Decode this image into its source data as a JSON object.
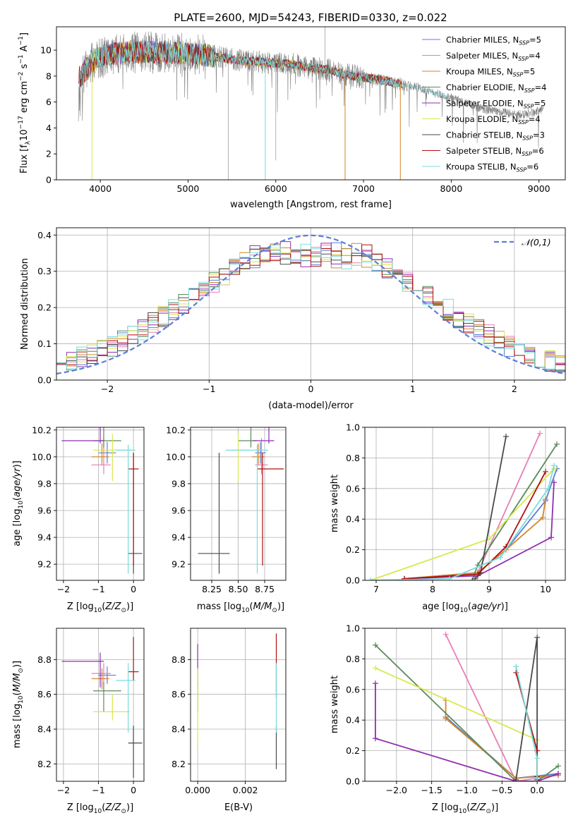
{
  "figure_title": "PLATE=2600, MJD=54243, FIBERID=0330, z=0.022",
  "colors": {
    "Chabrier MILES": "#5b7fd6",
    "Salpeter MILES": "#e57fb5",
    "Kroupa MILES": "#d4862a",
    "Chabrier ELODIE": "#5a8a5a",
    "Salpeter ELODIE": "#8e2fb0",
    "Kroupa ELODIE": "#d8e84f",
    "Chabrier STELIB": "#4a4a4a",
    "Salpeter STELIB": "#b01010",
    "Kroupa STELIB": "#79dcdc",
    "data": "#808080",
    "gaussian": "#5b7fd6"
  },
  "chart_data": [
    {
      "type": "line",
      "id": "spectrum",
      "xlabel": "wavelength [Angstrom, rest frame]",
      "ylabel": "Flux [f_λ10^-17 erg cm^-2 s^-1 A^-1]",
      "xlim": [
        3500,
        9300
      ],
      "ylim": [
        0,
        11.8
      ],
      "xticks": [
        4000,
        5000,
        6000,
        7000,
        8000,
        9000
      ],
      "yticks": [
        0,
        2,
        4,
        6,
        8,
        10
      ],
      "legend_position": "upper-right",
      "legend": [
        {
          "name": "Chabrier MILES, N_SSP=5"
        },
        {
          "name": "Salpeter MILES, N_SSP=4"
        },
        {
          "name": "Kroupa MILES, N_SSP=5"
        },
        {
          "name": "Chabrier ELODIE, N_SSP=4"
        },
        {
          "name": "Salpeter ELODIE, N_SSP=5"
        },
        {
          "name": "Kroupa ELODIE, N_SSP=4"
        },
        {
          "name": "Chabrier STELIB, N_SSP=3"
        },
        {
          "name": "Salpeter STELIB, N_SSP=6"
        },
        {
          "name": "Kroupa STELIB, N_SSP=6"
        }
      ],
      "continuum": {
        "x": [
          3750,
          3850,
          3950,
          4050,
          4150,
          4300,
          4500,
          4700,
          4850,
          5000,
          5200,
          5400,
          5600,
          5800,
          6000,
          6200,
          6400,
          6600,
          6800,
          7000,
          7200,
          7400,
          7600,
          7800,
          8000,
          8200,
          8400,
          8600,
          8800,
          9000,
          9050
        ],
        "y": [
          7.8,
          8.6,
          9.3,
          9.6,
          9.7,
          9.8,
          9.9,
          9.8,
          9.8,
          9.7,
          9.6,
          9.4,
          9.2,
          9.1,
          9.0,
          8.9,
          8.6,
          8.5,
          8.1,
          7.9,
          7.7,
          7.4,
          7.2,
          6.7,
          6.3,
          5.8,
          5.4,
          5.2,
          5.0,
          5.3,
          5.4
        ]
      },
      "model_spikes": [
        {
          "x": 3905,
          "y": 0
        },
        {
          "x": 5880,
          "y": 0
        },
        {
          "x": 6790,
          "y": 0
        },
        {
          "x": 7420,
          "y": 0
        }
      ],
      "data_spikes": [
        {
          "x": 5460,
          "y": 0
        },
        {
          "x": 6000,
          "y": 1.5
        },
        {
          "x": 6560,
          "y": 12.0
        }
      ]
    },
    {
      "type": "bar",
      "id": "residuals",
      "xlabel": "(data-model)/error",
      "ylabel": "Normed distribution",
      "xlim": [
        -2.5,
        2.5
      ],
      "ylim": [
        0,
        0.42
      ],
      "xticks": [
        -2,
        -1,
        0,
        1,
        2
      ],
      "yticks": [
        0.0,
        0.1,
        0.2,
        0.3,
        0.4
      ],
      "legend_position": "upper-right",
      "legend": [
        {
          "name": "𝒩(0,1)"
        }
      ],
      "bin_width": 0.1
    },
    {
      "type": "scatter",
      "id": "age_vs_z",
      "xlabel": "Z [log10(Z/Z⊙)]",
      "ylabel": "age [log10(age/yr)]",
      "xlim": [
        -2.2,
        0.3
      ],
      "ylim": [
        9.08,
        10.22
      ],
      "xticks": [
        -2,
        -1,
        0
      ],
      "yticks": [
        9.2,
        9.4,
        9.6,
        9.8,
        10.0,
        10.2
      ],
      "points": [
        {
          "model": "Chabrier MILES",
          "x": -0.75,
          "y": 10.03,
          "xerr": [
            0.25,
            0.25
          ],
          "yerr": [
            0.08,
            0.08
          ]
        },
        {
          "model": "Salpeter MILES",
          "x": -0.85,
          "y": 9.94,
          "xerr": [
            0.35,
            0.2
          ],
          "yerr": [
            0.07,
            0.2
          ]
        },
        {
          "model": "Kroupa MILES",
          "x": -0.9,
          "y": 10.0,
          "xerr": [
            0.3,
            0.2
          ],
          "yerr": [
            0.06,
            0.1
          ]
        },
        {
          "model": "Chabrier ELODIE",
          "x": -0.85,
          "y": 10.12,
          "xerr": [
            0.3,
            0.5
          ],
          "yerr": [
            0.05,
            0.15
          ]
        },
        {
          "model": "Salpeter ELODIE",
          "x": -0.95,
          "y": 10.12,
          "xerr": [
            1.1,
            0.1
          ],
          "yerr": [
            0.02,
            0.14
          ]
        },
        {
          "model": "Kroupa ELODIE",
          "x": -0.6,
          "y": 10.05,
          "xerr": [
            0.55,
            0.5
          ],
          "yerr": [
            0.23,
            0.12
          ]
        },
        {
          "model": "Chabrier STELIB",
          "x": 0.0,
          "y": 9.28,
          "xerr": [
            0.15,
            0.25
          ],
          "yerr": [
            0.15,
            0.75
          ]
        },
        {
          "model": "Salpeter STELIB",
          "x": 0.0,
          "y": 9.91,
          "xerr": [
            0.15,
            0.15
          ],
          "yerr": [
            0.72,
            0.12
          ]
        },
        {
          "model": "Kroupa STELIB",
          "x": -0.15,
          "y": 10.05,
          "xerr": [
            0.35,
            0.2
          ],
          "yerr": [
            0.92,
            0.04
          ]
        }
      ]
    },
    {
      "type": "scatter",
      "id": "age_vs_mass",
      "xlabel": "mass [log10(M/M⊙)]",
      "ylabel": "",
      "xlim": [
        8.05,
        8.95
      ],
      "ylim": [
        9.08,
        10.22
      ],
      "xticks": [
        8.25,
        8.5,
        8.75
      ],
      "yticks": [
        9.2,
        9.4,
        9.6,
        9.8,
        10.0,
        10.2
      ],
      "points": [
        {
          "model": "Chabrier MILES",
          "x": 8.71,
          "y": 10.03,
          "xerr": [
            0.05,
            0.05
          ],
          "yerr": [
            0.08,
            0.08
          ]
        },
        {
          "model": "Salpeter MILES",
          "x": 8.72,
          "y": 9.94,
          "xerr": [
            0.06,
            0.06
          ],
          "yerr": [
            0.07,
            0.2
          ]
        },
        {
          "model": "Kroupa MILES",
          "x": 8.69,
          "y": 10.0,
          "xerr": [
            0.06,
            0.06
          ],
          "yerr": [
            0.06,
            0.1
          ]
        },
        {
          "model": "Chabrier ELODIE",
          "x": 8.62,
          "y": 10.12,
          "xerr": [
            0.12,
            0.05
          ],
          "yerr": [
            0.05,
            0.15
          ]
        },
        {
          "model": "Salpeter ELODIE",
          "x": 8.79,
          "y": 10.12,
          "xerr": [
            0.15,
            0.05
          ],
          "yerr": [
            0.02,
            0.14
          ]
        },
        {
          "model": "Kroupa ELODIE",
          "x": 8.5,
          "y": 10.05,
          "xerr": [
            0.05,
            0.1
          ],
          "yerr": [
            0.23,
            0.12
          ]
        },
        {
          "model": "Chabrier STELIB",
          "x": 8.32,
          "y": 9.28,
          "xerr": [
            0.2,
            0.1
          ],
          "yerr": [
            0.15,
            0.75
          ]
        },
        {
          "model": "Salpeter STELIB",
          "x": 8.73,
          "y": 9.91,
          "xerr": [
            0.05,
            0.2
          ],
          "yerr": [
            0.72,
            0.12
          ]
        },
        {
          "model": "Kroupa STELIB",
          "x": 8.68,
          "y": 10.05,
          "xerr": [
            0.3,
            0.1
          ],
          "yerr": [
            0.92,
            0.04
          ]
        }
      ]
    },
    {
      "type": "line",
      "id": "massweight_vs_age",
      "xlabel": "age [log10(age/yr)]",
      "ylabel": "mass weight",
      "xlim": [
        6.8,
        10.35
      ],
      "ylim": [
        0,
        1.0
      ],
      "xticks": [
        7,
        8,
        9,
        10
      ],
      "yticks": [
        0.0,
        0.2,
        0.4,
        0.6,
        0.8,
        1.0
      ],
      "series": [
        {
          "model": "Chabrier MILES",
          "x": [
            7.5,
            8.8,
            9.3,
            10.0,
            10.2
          ],
          "y": [
            0.01,
            0.05,
            0.2,
            0.52,
            0.73
          ]
        },
        {
          "model": "Salpeter MILES",
          "x": [
            8.8,
            9.9
          ],
          "y": [
            0.05,
            0.96
          ]
        },
        {
          "model": "Kroupa MILES",
          "x": [
            7.5,
            8.8,
            9.3,
            9.95,
            10.0
          ],
          "y": [
            0.01,
            0.05,
            0.2,
            0.41,
            0.53
          ]
        },
        {
          "model": "Chabrier ELODIE",
          "x": [
            8.7,
            8.8,
            10.2
          ],
          "y": [
            0.0,
            0.1,
            0.89
          ]
        },
        {
          "model": "Salpeter ELODIE",
          "x": [
            7.5,
            8.8,
            10.1,
            10.15
          ],
          "y": [
            0.01,
            0.03,
            0.28,
            0.64
          ]
        },
        {
          "model": "Kroupa ELODIE",
          "x": [
            6.9,
            9.0,
            10.15
          ],
          "y": [
            0.0,
            0.27,
            0.73
          ]
        },
        {
          "model": "Chabrier STELIB",
          "x": [
            8.75,
            8.85,
            9.3
          ],
          "y": [
            0.01,
            0.05,
            0.94
          ]
        },
        {
          "model": "Salpeter STELIB",
          "x": [
            7.5,
            8.8,
            9.3,
            10.0
          ],
          "y": [
            0.01,
            0.04,
            0.22,
            0.71
          ]
        },
        {
          "model": "Kroupa STELIB",
          "x": [
            6.9,
            8.3,
            9.2,
            10.05,
            10.15
          ],
          "y": [
            0.0,
            0.01,
            0.15,
            0.6,
            0.75
          ]
        }
      ]
    },
    {
      "type": "scatter",
      "id": "mass_vs_z",
      "xlabel": "Z [log10(Z/Z⊙)]",
      "ylabel": "mass [log10(M/M⊙)]",
      "xlim": [
        -2.2,
        0.3
      ],
      "ylim": [
        8.1,
        8.98
      ],
      "xticks": [
        -2,
        -1,
        0
      ],
      "yticks": [
        8.2,
        8.4,
        8.6,
        8.8
      ],
      "points": [
        {
          "model": "Chabrier MILES",
          "x": -0.75,
          "y": 8.71,
          "xerr": [
            0.25,
            0.25
          ],
          "yerr": [
            0.05,
            0.05
          ]
        },
        {
          "model": "Salpeter MILES",
          "x": -0.85,
          "y": 8.72,
          "xerr": [
            0.35,
            0.2
          ],
          "yerr": [
            0.06,
            0.06
          ]
        },
        {
          "model": "Kroupa MILES",
          "x": -0.9,
          "y": 8.69,
          "xerr": [
            0.3,
            0.2
          ],
          "yerr": [
            0.06,
            0.06
          ]
        },
        {
          "model": "Chabrier ELODIE",
          "x": -0.85,
          "y": 8.62,
          "xerr": [
            0.3,
            0.5
          ],
          "yerr": [
            0.12,
            0.05
          ]
        },
        {
          "model": "Salpeter ELODIE",
          "x": -0.95,
          "y": 8.79,
          "xerr": [
            1.1,
            0.1
          ],
          "yerr": [
            0.15,
            0.05
          ]
        },
        {
          "model": "Kroupa ELODIE",
          "x": -0.6,
          "y": 8.5,
          "xerr": [
            0.55,
            0.5
          ],
          "yerr": [
            0.05,
            0.1
          ]
        },
        {
          "model": "Chabrier STELIB",
          "x": 0.0,
          "y": 8.32,
          "xerr": [
            0.15,
            0.25
          ],
          "yerr": [
            0.2,
            0.1
          ]
        },
        {
          "model": "Salpeter STELIB",
          "x": 0.0,
          "y": 8.73,
          "xerr": [
            0.15,
            0.15
          ],
          "yerr": [
            0.05,
            0.2
          ]
        },
        {
          "model": "Kroupa STELIB",
          "x": -0.15,
          "y": 8.68,
          "xerr": [
            0.35,
            0.2
          ],
          "yerr": [
            0.3,
            0.1
          ]
        }
      ]
    },
    {
      "type": "scatter",
      "id": "mass_vs_ebv",
      "xlabel": "E(B-V)",
      "ylabel": "",
      "xlim": [
        -0.0003,
        0.0037
      ],
      "ylim": [
        8.1,
        8.98
      ],
      "xticks": [
        0.0,
        0.002
      ],
      "xtick_labels": [
        "0.000",
        "0.002"
      ],
      "yticks": [
        8.2,
        8.4,
        8.6,
        8.8
      ],
      "points": [
        {
          "model": "Chabrier ELODIE",
          "x": 0.0,
          "y": 8.62,
          "yerr": [
            0.12,
            0.05
          ]
        },
        {
          "model": "Salpeter ELODIE",
          "x": 0.0,
          "y": 8.79,
          "yerr": [
            0.15,
            0.1
          ]
        },
        {
          "model": "Kroupa ELODIE",
          "x": 0.0,
          "y": 8.5,
          "yerr": [
            0.2,
            0.25
          ]
        },
        {
          "model": "Chabrier STELIB",
          "x": 0.0033,
          "y": 8.32,
          "yerr": [
            0.15,
            0.1
          ]
        },
        {
          "model": "Salpeter STELIB",
          "x": 0.0033,
          "y": 8.73,
          "yerr": [
            0.15,
            0.22
          ]
        },
        {
          "model": "Kroupa STELIB",
          "x": 0.0033,
          "y": 8.68,
          "yerr": [
            0.3,
            0.1
          ]
        }
      ]
    },
    {
      "type": "line",
      "id": "massweight_vs_z",
      "xlabel": "Z [log10(Z/Z⊙)]",
      "ylabel": "mass weight",
      "xlim": [
        -2.45,
        0.4
      ],
      "ylim": [
        0,
        1.0
      ],
      "xticks": [
        -2.0,
        -1.5,
        -1.0,
        -0.5,
        0.0
      ],
      "xtick_labels": [
        "−2.0",
        "−1.5",
        "−1.0",
        "−0.5",
        "0.0"
      ],
      "yticks": [
        0.0,
        0.2,
        0.4,
        0.6,
        0.8,
        1.0
      ],
      "series": [
        {
          "model": "Chabrier MILES",
          "x": [
            -1.3,
            -0.3,
            0.3
          ],
          "y": [
            0.42,
            0.02,
            0.05
          ]
        },
        {
          "model": "Salpeter MILES",
          "x": [
            -1.3,
            -0.3,
            0.3
          ],
          "y": [
            0.96,
            0.0,
            0.04
          ]
        },
        {
          "model": "Kroupa MILES",
          "x": [
            -1.3,
            -1.3,
            -0.3,
            0.3
          ],
          "y": [
            0.53,
            0.41,
            0.02,
            0.04
          ]
        },
        {
          "model": "Chabrier ELODIE",
          "x": [
            -2.3,
            -0.3,
            0.0,
            0.3
          ],
          "y": [
            0.89,
            0.0,
            0.0,
            0.1
          ]
        },
        {
          "model": "Salpeter ELODIE",
          "x": [
            -2.3,
            -2.3,
            -0.3,
            0.0,
            0.3
          ],
          "y": [
            0.64,
            0.28,
            0.0,
            0.0,
            0.05
          ]
        },
        {
          "model": "Kroupa ELODIE",
          "x": [
            -2.3,
            0.0,
            0.0
          ],
          "y": [
            0.74,
            0.27,
            0.0
          ]
        },
        {
          "model": "Chabrier STELIB",
          "x": [
            -0.3,
            0.0,
            0.0
          ],
          "y": [
            0.01,
            0.94,
            0.03
          ]
        },
        {
          "model": "Salpeter STELIB",
          "x": [
            -0.3,
            0.0,
            0.0
          ],
          "y": [
            0.71,
            0.2,
            0.01
          ]
        },
        {
          "model": "Kroupa STELIB",
          "x": [
            -0.3,
            0.0,
            0.0
          ],
          "y": [
            0.75,
            0.15,
            0.02
          ]
        }
      ]
    }
  ]
}
